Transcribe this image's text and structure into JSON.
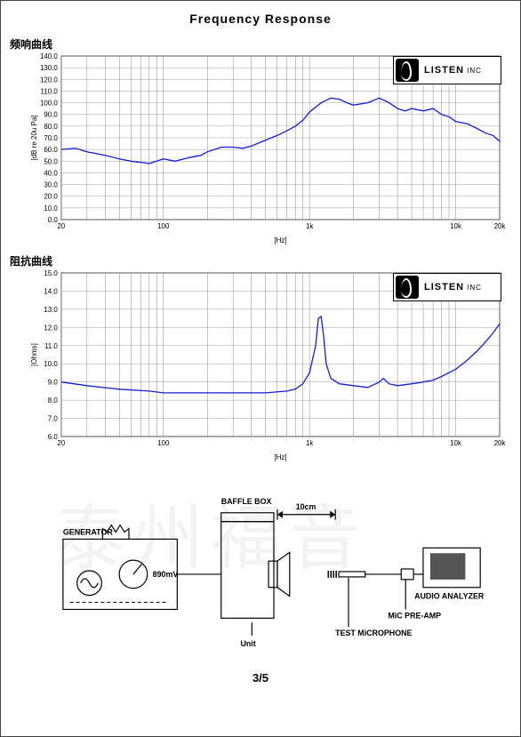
{
  "page": {
    "title": "Frequency   Response",
    "page_number": "3/5"
  },
  "watermark_text": "泰州福音",
  "logo_text": "LISTEN",
  "logo_suffix": "INC",
  "chart1": {
    "title": "频响曲线",
    "type": "line",
    "x_scale": "log",
    "xlim": [
      20,
      20000
    ],
    "ylim": [
      0,
      140
    ],
    "ytick_step": 10,
    "x_ticks": [
      20,
      30,
      40,
      50,
      60,
      70,
      80,
      90,
      100,
      200,
      300,
      400,
      500,
      600,
      700,
      800,
      900,
      1000,
      2000,
      3000,
      4000,
      5000,
      6000,
      7000,
      8000,
      9000,
      10000,
      20000
    ],
    "x_labels": {
      "20": "20",
      "100": "100",
      "1000": "1k",
      "10000": "10k",
      "20000": "20k"
    },
    "xlabel": "[Hz]",
    "ylabel": "[dB re 20u Pa]",
    "line_color": "#1020d0",
    "grid_color": "#888888",
    "background_color": "#ffffff",
    "data": [
      [
        20,
        60
      ],
      [
        25,
        61
      ],
      [
        30,
        58
      ],
      [
        40,
        55
      ],
      [
        50,
        52
      ],
      [
        60,
        50
      ],
      [
        70,
        49
      ],
      [
        80,
        48
      ],
      [
        90,
        50
      ],
      [
        100,
        52
      ],
      [
        120,
        50
      ],
      [
        150,
        53
      ],
      [
        180,
        55
      ],
      [
        200,
        58
      ],
      [
        250,
        62
      ],
      [
        300,
        62
      ],
      [
        350,
        61
      ],
      [
        400,
        63
      ],
      [
        500,
        68
      ],
      [
        600,
        72
      ],
      [
        700,
        76
      ],
      [
        800,
        80
      ],
      [
        900,
        85
      ],
      [
        1000,
        92
      ],
      [
        1200,
        100
      ],
      [
        1400,
        104
      ],
      [
        1600,
        103
      ],
      [
        1800,
        100
      ],
      [
        2000,
        98
      ],
      [
        2500,
        100
      ],
      [
        3000,
        104
      ],
      [
        3500,
        100
      ],
      [
        4000,
        95
      ],
      [
        4500,
        93
      ],
      [
        5000,
        95
      ],
      [
        6000,
        93
      ],
      [
        7000,
        95
      ],
      [
        8000,
        90
      ],
      [
        9000,
        88
      ],
      [
        10000,
        84
      ],
      [
        12000,
        82
      ],
      [
        14000,
        78
      ],
      [
        16000,
        74
      ],
      [
        18000,
        72
      ],
      [
        20000,
        67
      ]
    ]
  },
  "chart2": {
    "title": "阻抗曲线",
    "type": "line",
    "x_scale": "log",
    "xlim": [
      20,
      20000
    ],
    "ylim": [
      6,
      15
    ],
    "ytick_step": 1,
    "x_ticks": [
      20,
      30,
      40,
      50,
      60,
      70,
      80,
      90,
      100,
      200,
      300,
      400,
      500,
      600,
      700,
      800,
      900,
      1000,
      2000,
      3000,
      4000,
      5000,
      6000,
      7000,
      8000,
      9000,
      10000,
      20000
    ],
    "x_labels": {
      "20": "20",
      "100": "100",
      "1000": "1k",
      "10000": "10k",
      "20000": "20k"
    },
    "xlabel": "[Hz]",
    "ylabel": "[Ohms]",
    "line_color": "#1020d0",
    "grid_color": "#888888",
    "background_color": "#ffffff",
    "data": [
      [
        20,
        9.0
      ],
      [
        30,
        8.8
      ],
      [
        50,
        8.6
      ],
      [
        80,
        8.5
      ],
      [
        100,
        8.4
      ],
      [
        200,
        8.4
      ],
      [
        300,
        8.4
      ],
      [
        500,
        8.4
      ],
      [
        700,
        8.5
      ],
      [
        800,
        8.6
      ],
      [
        900,
        8.9
      ],
      [
        1000,
        9.5
      ],
      [
        1100,
        11.0
      ],
      [
        1150,
        12.5
      ],
      [
        1200,
        12.6
      ],
      [
        1250,
        11.5
      ],
      [
        1300,
        10.0
      ],
      [
        1400,
        9.2
      ],
      [
        1600,
        8.9
      ],
      [
        2000,
        8.8
      ],
      [
        2500,
        8.7
      ],
      [
        3000,
        9.0
      ],
      [
        3200,
        9.2
      ],
      [
        3500,
        8.9
      ],
      [
        4000,
        8.8
      ],
      [
        5000,
        8.9
      ],
      [
        6000,
        9.0
      ],
      [
        7000,
        9.1
      ],
      [
        8000,
        9.3
      ],
      [
        10000,
        9.7
      ],
      [
        12000,
        10.2
      ],
      [
        14000,
        10.7
      ],
      [
        16000,
        11.2
      ],
      [
        18000,
        11.7
      ],
      [
        20000,
        12.2
      ]
    ]
  },
  "diagram": {
    "labels": {
      "generator": "GENERATOR",
      "baffle_box": "BAFFLE BOX",
      "distance": "10cm",
      "unit": "Unit",
      "analyzer": "AUDIO ANALYZER",
      "preamp": "MiC PRE-AMP",
      "mic": "TEST MiCROPHONE",
      "voltage": "890mV"
    },
    "colors": {
      "stroke": "#000000",
      "bg": "#ffffff"
    }
  }
}
